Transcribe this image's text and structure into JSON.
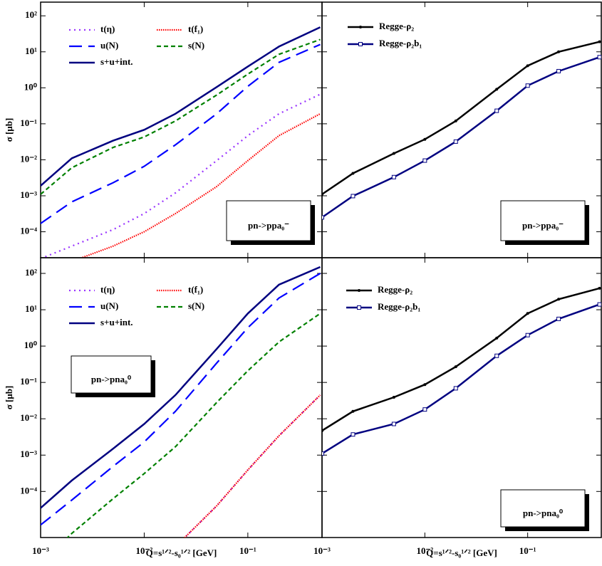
{
  "chart_data": [
    {
      "type": "line",
      "annotation": "pn->ppa₀⁻",
      "y_label": "σ [μb]",
      "log_x": true,
      "log_y": true,
      "legend": "upper left",
      "x": [
        0.001,
        0.002,
        0.005,
        0.01,
        0.02,
        0.05,
        0.1,
        0.2,
        0.5
      ],
      "xlim": [
        0.001,
        0.52
      ],
      "ylim": [
        1.9e-05,
        240
      ],
      "xticks": [
        0.001,
        0.01,
        0.1
      ],
      "yticks": [
        {
          "value": 0.0001,
          "label": "10⁻⁴"
        },
        {
          "value": 0.001,
          "label": "10⁻³"
        },
        {
          "value": 0.01,
          "label": "10⁻²"
        },
        {
          "value": 0.1,
          "label": "10⁻¹"
        },
        {
          "value": 1,
          "label": "10⁰"
        },
        {
          "value": 10,
          "label": "10¹"
        },
        {
          "value": 100,
          "label": "10²"
        }
      ],
      "series": [
        {
          "name": "t(η)",
          "color": "#9933ff",
          "style": "dotted",
          "values": [
            1.8e-05,
            4e-05,
            0.000115,
            0.00032,
            0.0012,
            0.0095,
            0.047,
            0.19,
            0.66
          ]
        },
        {
          "name": "t(f₁)",
          "color": "#ff0000",
          "style": "fine-dotted",
          "values": [
            5e-06,
            1.5e-05,
            4e-05,
            0.0001,
            0.00032,
            0.0018,
            0.0095,
            0.047,
            0.19
          ]
        },
        {
          "name": "u(N)",
          "color": "#0000ff",
          "style": "dashed",
          "values": [
            0.00017,
            0.00068,
            0.0023,
            0.0066,
            0.026,
            0.19,
            1.1,
            5.1,
            16
          ]
        },
        {
          "name": "s(N)",
          "color": "#008000",
          "style": "short-dashed",
          "values": [
            0.0011,
            0.006,
            0.022,
            0.043,
            0.12,
            0.63,
            2.4,
            8.5,
            22
          ]
        },
        {
          "name": "s+u+int.",
          "color": "#000080",
          "style": "solid",
          "values": [
            0.0019,
            0.011,
            0.034,
            0.068,
            0.19,
            1.05,
            3.9,
            14,
            48
          ]
        }
      ]
    },
    {
      "type": "line",
      "annotation": "pn->ppa₀⁻",
      "log_x": true,
      "log_y": true,
      "legend": "upper left",
      "x": [
        0.001,
        0.002,
        0.005,
        0.01,
        0.02,
        0.05,
        0.1,
        0.2,
        0.5
      ],
      "xlim": [
        0.001,
        0.52
      ],
      "ylim": [
        1.9e-05,
        240
      ],
      "xticks": [
        0.001,
        0.01,
        0.1
      ],
      "yticks": [
        0.0001,
        0.001,
        0.01,
        0.1,
        1,
        10,
        100
      ],
      "series": [
        {
          "name": "Regge-ρ₂",
          "color": "#000000",
          "style": "solid",
          "marker": "dot",
          "values": [
            0.0011,
            0.0042,
            0.015,
            0.037,
            0.12,
            0.91,
            4.1,
            10,
            19
          ]
        },
        {
          "name": "Regge-ρ₂b₁",
          "color": "#000080",
          "style": "solid",
          "marker": "square",
          "values": [
            0.00025,
            0.00098,
            0.0033,
            0.0095,
            0.032,
            0.23,
            1.15,
            2.9,
            7.1
          ]
        }
      ]
    },
    {
      "type": "line",
      "annotation": "pn->pna₀⁰",
      "y_label": "σ [μb]",
      "x_label": "Q=s¹ᐟ²-s₀¹ᐟ² [GeV]",
      "log_x": true,
      "log_y": true,
      "legend": "upper left",
      "x": [
        0.001,
        0.002,
        0.005,
        0.01,
        0.02,
        0.05,
        0.1,
        0.2,
        0.5
      ],
      "xlim": [
        0.001,
        0.52
      ],
      "ylim": [
        5.4e-06,
        270
      ],
      "xticks": [
        {
          "value": 0.001,
          "label": "10⁻³"
        },
        {
          "value": 0.01,
          "label": "10⁻²"
        },
        {
          "value": 0.1,
          "label": "10⁻¹"
        }
      ],
      "yticks": [
        {
          "value": 0.0001,
          "label": "10⁻⁴"
        },
        {
          "value": 0.001,
          "label": "10⁻³"
        },
        {
          "value": 0.01,
          "label": "10⁻²"
        },
        {
          "value": 0.1,
          "label": "10⁻¹"
        },
        {
          "value": 1,
          "label": "10⁰"
        },
        {
          "value": 10,
          "label": "10¹"
        },
        {
          "value": 100,
          "label": "10²"
        }
      ],
      "series": [
        {
          "name": "t(η)",
          "color": "#9933ff",
          "style": "dotted",
          "values": [
            null,
            null,
            null,
            null,
            3e-06,
            4e-05,
            0.00039,
            0.0034,
            0.045
          ]
        },
        {
          "name": "t(f₁)",
          "color": "#ff0000",
          "style": "fine-dotted",
          "values": [
            null,
            null,
            null,
            null,
            3e-06,
            4e-05,
            0.00039,
            0.0034,
            0.045
          ]
        },
        {
          "name": "u(N)",
          "color": "#0000ff",
          "style": "dashed",
          "values": [
            1.2e-05,
            5.8e-05,
            0.00049,
            0.0023,
            0.016,
            0.34,
            3.2,
            21,
            100
          ]
        },
        {
          "name": "s(N)",
          "color": "#008000",
          "style": "short-dashed",
          "values": [
            1e-06,
            7e-06,
            6.3e-05,
            0.00031,
            0.0017,
            0.028,
            0.21,
            1.3,
            7.9
          ]
        },
        {
          "name": "s+u+int.",
          "color": "#000080",
          "style": "solid",
          "values": [
            3.5e-05,
            0.0002,
            0.0015,
            0.0072,
            0.045,
            0.83,
            7.9,
            49,
            150
          ]
        }
      ]
    },
    {
      "type": "line",
      "annotation": "pn->pna₀⁰",
      "x_label": "Q=s¹ᐟ²-s₀¹ᐟ² [GeV]",
      "log_x": true,
      "log_y": true,
      "legend": "upper left",
      "x": [
        0.001,
        0.002,
        0.005,
        0.01,
        0.02,
        0.05,
        0.1,
        0.2,
        0.5
      ],
      "xlim": [
        0.001,
        0.52
      ],
      "ylim": [
        5.4e-06,
        270
      ],
      "xticks": [
        {
          "value": 0.001,
          "label": "10⁻³"
        },
        {
          "value": 0.01,
          "label": "10⁻²"
        },
        {
          "value": 0.1,
          "label": "10⁻¹"
        }
      ],
      "yticks": [
        0.0001,
        0.001,
        0.01,
        0.1,
        1,
        10,
        100
      ],
      "series": [
        {
          "name": "Regge-ρ₂",
          "color": "#000000",
          "style": "solid",
          "marker": "dot",
          "values": [
            0.0047,
            0.016,
            0.039,
            0.087,
            0.27,
            1.66,
            7.9,
            19.5,
            39
          ]
        },
        {
          "name": "Regge-ρ₂b₁",
          "color": "#000080",
          "style": "solid",
          "marker": "square",
          "values": [
            0.0011,
            0.0037,
            0.0072,
            0.018,
            0.069,
            0.54,
            2.0,
            5.6,
            14
          ]
        }
      ]
    }
  ]
}
